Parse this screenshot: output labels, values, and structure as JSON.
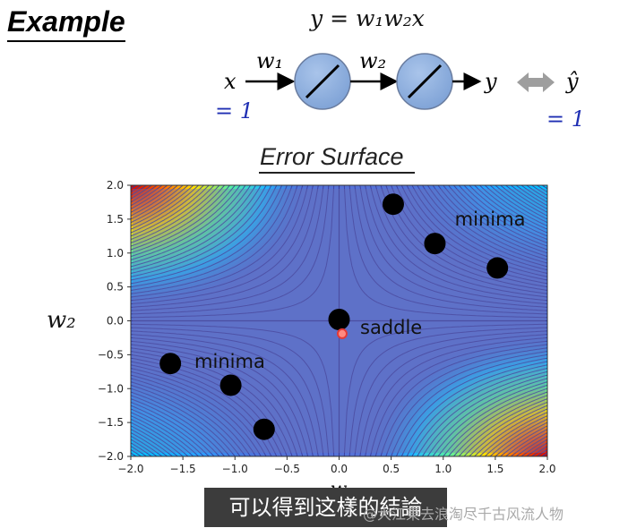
{
  "slide": {
    "title": "Example",
    "equation": "y = w₁w₂x",
    "network": {
      "input_symbol": "x",
      "input_value": "= 1",
      "weight1": "w₁",
      "weight2": "w₂",
      "output_symbol": "y",
      "target_symbol": "ŷ",
      "target_value": "= 1"
    },
    "plot_title": "Error Surface",
    "xlabel": "w₁",
    "ylabel": "w₂"
  },
  "chart_data": {
    "type": "heatmap",
    "xlim": [
      -2.0,
      2.0
    ],
    "ylim": [
      -2.0,
      2.0
    ],
    "xticks": [
      "−2.0",
      "−1.5",
      "−1.0",
      "−0.5",
      "0.0",
      "0.5",
      "1.0",
      "1.5",
      "2.0"
    ],
    "yticks": [
      "2.0",
      "1.5",
      "1.0",
      "0.5",
      "0.0",
      "−0.5",
      "−1.0",
      "−1.5",
      "−2.0"
    ],
    "surface": "(1 - w1*w2)^2",
    "colormap": "jet",
    "minima_points": [
      {
        "x": 0.52,
        "y": 1.72
      },
      {
        "x": 0.92,
        "y": 1.14
      },
      {
        "x": 1.52,
        "y": 0.78
      },
      {
        "x": -1.62,
        "y": -0.63
      },
      {
        "x": -1.04,
        "y": -0.95
      },
      {
        "x": -0.72,
        "y": -1.6
      }
    ],
    "saddle_point": {
      "x": 0.0,
      "y": 0.02
    },
    "current_point": {
      "x": 0.03,
      "y": -0.19
    },
    "annotations": [
      {
        "text": "minima",
        "x": 1.45,
        "y": 1.5
      },
      {
        "text": "saddle",
        "x": 0.5,
        "y": -0.1
      },
      {
        "text": "minima",
        "x": -1.05,
        "y": -0.6
      }
    ]
  },
  "caption": {
    "subtitle": "可以得到这樣的結論",
    "watermark": "@大江東去浪淘尽千古风流人物"
  }
}
